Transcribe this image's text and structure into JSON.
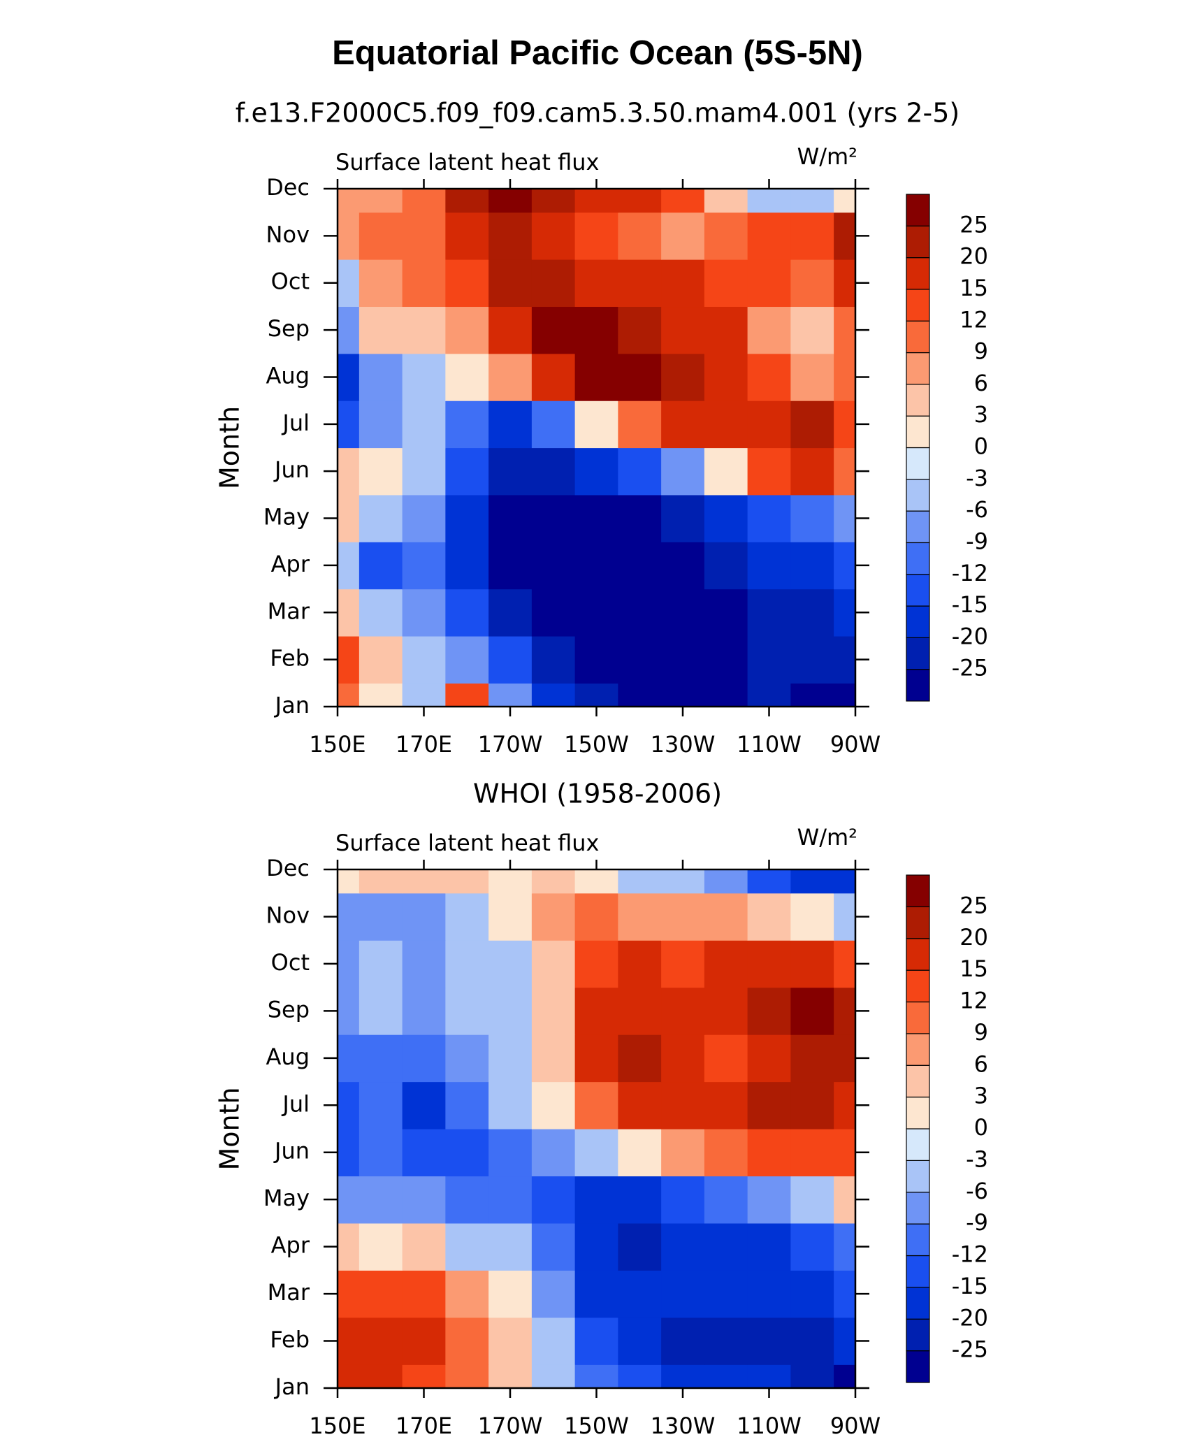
{
  "title": "Equatorial Pacific Ocean (5S-5N)",
  "chart_data": [
    {
      "type": "contour",
      "title": "f.e13.F2000C5.f09_f09.cam5.3.50.mam4.001 (yrs 2-5)",
      "left_string": "Surface latent heat flux",
      "right_string": "W/m²",
      "y_label": "Month",
      "x": [
        150,
        160,
        170,
        180,
        190,
        200,
        210,
        220,
        230,
        240,
        250,
        260,
        270
      ],
      "categories": [
        "Jan",
        "Feb",
        "Mar",
        "Apr",
        "May",
        "Jun",
        "Jul",
        "Aug",
        "Sep",
        "Oct",
        "Nov",
        "Dec"
      ],
      "z": [
        [
          9,
          0,
          -3,
          12,
          -6,
          -15,
          -22,
          -25,
          -25,
          -25,
          -20,
          -25,
          -25
        ],
        [
          12,
          3,
          -3,
          -6,
          -12,
          -20,
          -25,
          -25,
          -25,
          -25,
          -20,
          -20,
          -20
        ],
        [
          3,
          -3,
          -6,
          -12,
          -20,
          -25,
          -25,
          -25,
          -25,
          -25,
          -20,
          -20,
          -15
        ],
        [
          -3,
          -12,
          -9,
          -15,
          -25,
          -25,
          -25,
          -25,
          -25,
          -20,
          -15,
          -15,
          -12
        ],
        [
          3,
          -3,
          -6,
          -15,
          -25,
          -25,
          -25,
          -25,
          -20,
          -15,
          -12,
          -9,
          -6
        ],
        [
          3,
          0,
          -3,
          -12,
          -20,
          -20,
          -15,
          -12,
          -6,
          0,
          12,
          15,
          9
        ],
        [
          -12,
          -6,
          -3,
          -9,
          -15,
          -9,
          0,
          9,
          15,
          15,
          15,
          20,
          12
        ],
        [
          -15,
          -6,
          -3,
          0,
          6,
          15,
          25,
          25,
          20,
          15,
          12,
          6,
          9
        ],
        [
          -6,
          3,
          3,
          6,
          15,
          25,
          25,
          20,
          15,
          15,
          6,
          3,
          9
        ],
        [
          -3,
          6,
          9,
          12,
          20,
          20,
          15,
          15,
          15,
          12,
          12,
          9,
          15
        ],
        [
          6,
          9,
          9,
          15,
          20,
          15,
          12,
          9,
          6,
          9,
          12,
          12,
          20
        ],
        [
          6,
          6,
          9,
          20,
          25,
          20,
          15,
          15,
          12,
          3,
          -3,
          -3,
          0
        ]
      ],
      "xlim": [
        150,
        270
      ],
      "xticks": [
        {
          "value": 150,
          "label": "150E"
        },
        {
          "value": 170,
          "label": "170E"
        },
        {
          "value": 190,
          "label": "170W"
        },
        {
          "value": 210,
          "label": "150W"
        },
        {
          "value": 230,
          "label": "130W"
        },
        {
          "value": 250,
          "label": "110W"
        },
        {
          "value": 270,
          "label": "90W"
        }
      ],
      "levels": [
        -25,
        -20,
        -15,
        -12,
        -9,
        -6,
        -3,
        0,
        3,
        6,
        9,
        12,
        15,
        20,
        25
      ],
      "colors": [
        "#000090",
        "#0020b0",
        "#0033d5",
        "#1a4ff0",
        "#3f6ff5",
        "#6f94f5",
        "#a9c4f7",
        "#d6e8fb",
        "#fde6d0",
        "#fcc4a8",
        "#fb9a72",
        "#f96a3a",
        "#f54517",
        "#d62a05",
        "#ad1c03",
        "#850000"
      ]
    },
    {
      "type": "contour",
      "title": "WHOI (1958-2006)",
      "left_string": "Surface latent heat flux",
      "right_string": "W/m²",
      "y_label": "Month",
      "x": [
        150,
        160,
        170,
        180,
        190,
        200,
        210,
        220,
        230,
        240,
        250,
        260,
        270
      ],
      "categories": [
        "Jan",
        "Feb",
        "Mar",
        "Apr",
        "May",
        "Jun",
        "Jul",
        "Aug",
        "Sep",
        "Oct",
        "Nov",
        "Dec"
      ],
      "z": [
        [
          15,
          15,
          12,
          9,
          3,
          -3,
          -9,
          -12,
          -15,
          -15,
          -15,
          -20,
          -25
        ],
        [
          15,
          15,
          15,
          9,
          3,
          -3,
          -12,
          -15,
          -20,
          -20,
          -20,
          -20,
          -15
        ],
        [
          12,
          12,
          12,
          6,
          0,
          -6,
          -15,
          -15,
          -15,
          -15,
          -15,
          -15,
          -12
        ],
        [
          3,
          0,
          3,
          -3,
          -3,
          -9,
          -15,
          -20,
          -15,
          -15,
          -15,
          -12,
          -9
        ],
        [
          -6,
          -6,
          -6,
          -9,
          -9,
          -12,
          -15,
          -15,
          -12,
          -9,
          -6,
          -3,
          3
        ],
        [
          -12,
          -9,
          -12,
          -12,
          -9,
          -6,
          -3,
          0,
          6,
          9,
          12,
          12,
          12
        ],
        [
          -12,
          -9,
          -15,
          -9,
          -3,
          0,
          9,
          15,
          15,
          15,
          20,
          20,
          15
        ],
        [
          -9,
          -9,
          -9,
          -6,
          -3,
          3,
          15,
          20,
          15,
          12,
          15,
          20,
          20
        ],
        [
          -6,
          -3,
          -6,
          -3,
          -3,
          3,
          15,
          15,
          15,
          15,
          20,
          25,
          20
        ],
        [
          -6,
          -3,
          -6,
          -3,
          -3,
          3,
          12,
          15,
          12,
          15,
          15,
          15,
          12
        ],
        [
          -6,
          -6,
          -6,
          -3,
          0,
          6,
          9,
          6,
          6,
          6,
          3,
          0,
          -3
        ],
        [
          0,
          3,
          3,
          3,
          0,
          3,
          0,
          -3,
          -3,
          -6,
          -12,
          -15,
          -15
        ]
      ],
      "xlim": [
        150,
        270
      ],
      "xticks": [
        {
          "value": 150,
          "label": "150E"
        },
        {
          "value": 170,
          "label": "170E"
        },
        {
          "value": 190,
          "label": "170W"
        },
        {
          "value": 210,
          "label": "150W"
        },
        {
          "value": 230,
          "label": "130W"
        },
        {
          "value": 250,
          "label": "110W"
        },
        {
          "value": 270,
          "label": "90W"
        }
      ],
      "levels": [
        -25,
        -20,
        -15,
        -12,
        -9,
        -6,
        -3,
        0,
        3,
        6,
        9,
        12,
        15,
        20,
        25
      ],
      "colors": [
        "#000090",
        "#0020b0",
        "#0033d5",
        "#1a4ff0",
        "#3f6ff5",
        "#6f94f5",
        "#a9c4f7",
        "#d6e8fb",
        "#fde6d0",
        "#fcc4a8",
        "#fb9a72",
        "#f96a3a",
        "#f54517",
        "#d62a05",
        "#ad1c03",
        "#850000"
      ]
    }
  ]
}
